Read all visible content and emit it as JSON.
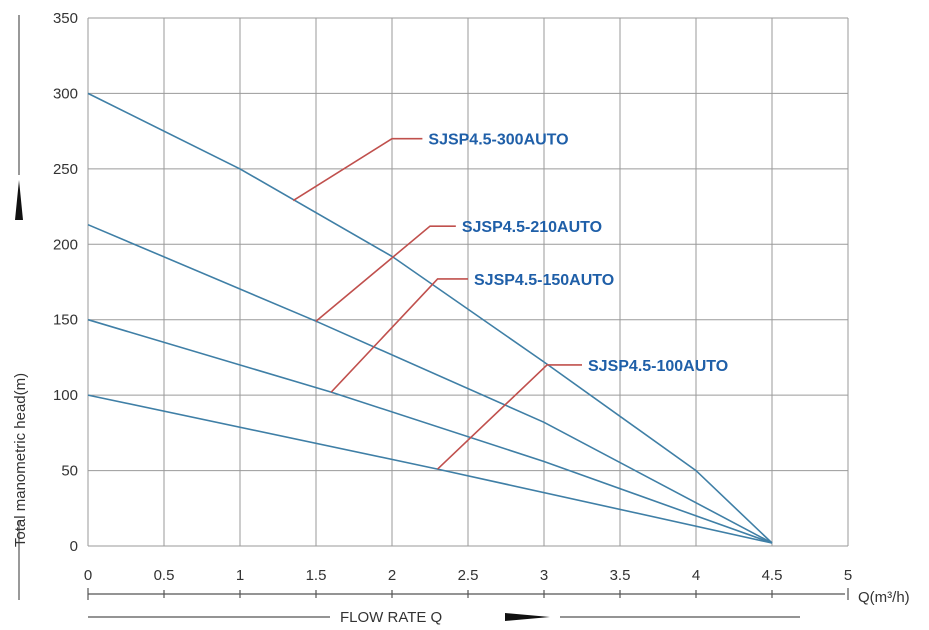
{
  "chart_data": {
    "type": "line",
    "title": "",
    "xlabel": "FLOW RATE Q",
    "x_unit": "Q(m³/h)",
    "ylabel": "Total manometric head(m)",
    "xlim": [
      0,
      5
    ],
    "ylim": [
      0,
      350
    ],
    "x_ticks": [
      "0",
      "0.5",
      "1",
      "1.5",
      "2",
      "2.5",
      "3",
      "3.5",
      "4",
      "4.5",
      "5"
    ],
    "y_ticks": [
      "0",
      "50",
      "100",
      "150",
      "200",
      "250",
      "300",
      "350"
    ],
    "grid": true,
    "series": [
      {
        "name": "SJSP4.5-300AUTO",
        "color": "#3f7fa6",
        "points": [
          [
            0,
            300
          ],
          [
            1,
            250
          ],
          [
            2,
            192
          ],
          [
            3,
            122
          ],
          [
            4,
            50
          ],
          [
            4.5,
            2
          ]
        ]
      },
      {
        "name": "SJSP4.5-210AUTO",
        "color": "#3f7fa6",
        "points": [
          [
            0,
            213
          ],
          [
            1.5,
            149
          ],
          [
            3,
            82
          ],
          [
            4.5,
            2
          ]
        ]
      },
      {
        "name": "SJSP4.5-150AUTO",
        "color": "#3f7fa6",
        "points": [
          [
            0,
            150
          ],
          [
            1.6,
            102
          ],
          [
            3,
            56
          ],
          [
            4.5,
            2
          ]
        ]
      },
      {
        "name": "SJSP4.5-100AUTO",
        "color": "#3f7fa6",
        "points": [
          [
            0,
            100
          ],
          [
            2.3,
            51
          ],
          [
            4.5,
            2
          ]
        ]
      }
    ],
    "annotations": [
      {
        "series": "SJSP4.5-300AUTO",
        "text": "SJSP4.5-300AUTO",
        "point": [
          1.35,
          229
        ],
        "elbow": [
          2.0,
          270
        ],
        "end": [
          2.2,
          270
        ]
      },
      {
        "series": "SJSP4.5-210AUTO",
        "text": "SJSP4.5-210AUTO",
        "point": [
          1.5,
          149
        ],
        "elbow": [
          2.25,
          212
        ],
        "end": [
          2.42,
          212
        ]
      },
      {
        "series": "SJSP4.5-150AUTO",
        "text": "SJSP4.5-150AUTO",
        "point": [
          1.6,
          102
        ],
        "elbow": [
          2.3,
          177
        ],
        "end": [
          2.5,
          177
        ]
      },
      {
        "series": "SJSP4.5-100AUTO",
        "text": "SJSP4.5-100AUTO",
        "point": [
          2.3,
          51
        ],
        "elbow": [
          3.02,
          120
        ],
        "end": [
          3.25,
          120
        ]
      }
    ],
    "leader_color": "#c0504d",
    "label_color": "#1f5fa8"
  }
}
